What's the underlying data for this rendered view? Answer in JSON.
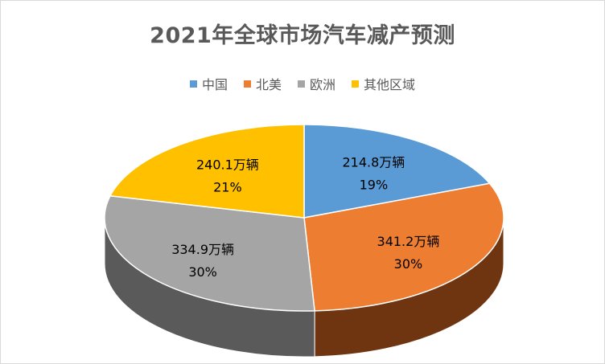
{
  "chart_data": {
    "type": "pie",
    "title": "2021年全球市场汽车减产预测",
    "legend_position": "top",
    "categories": [
      "中国",
      "北美",
      "欧洲",
      "其他区域"
    ],
    "values": [
      214.8,
      341.2,
      334.9,
      240.1
    ],
    "unit": "万辆",
    "percent_labels": [
      "19%",
      "30%",
      "30%",
      "21%"
    ],
    "value_labels": [
      "214.8万辆",
      "341.2万辆",
      "334.9万辆",
      "240.1万辆"
    ],
    "colors": [
      "#5b9bd5",
      "#ed7d31",
      "#a5a5a5",
      "#ffc000"
    ],
    "side_colors": [
      "#2e5f8f",
      "#6e3510",
      "#5a5a5a",
      "#8a6a00"
    ]
  }
}
